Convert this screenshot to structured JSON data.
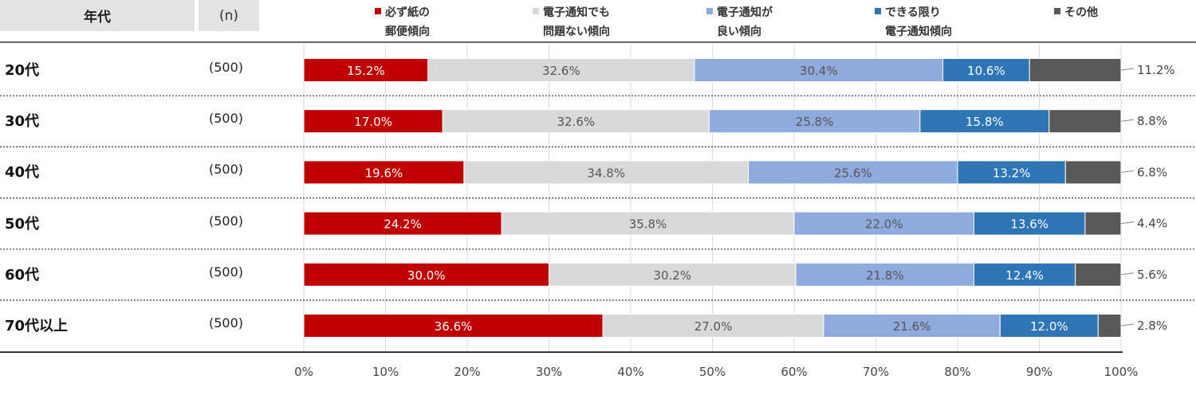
{
  "header": {
    "age_label": "年代",
    "n_label": "(n)"
  },
  "colors": {
    "series": [
      "#c00000",
      "#d9d9d9",
      "#8faadc",
      "#2e75b6",
      "#595959"
    ],
    "label_on_dark": "#ffffff",
    "label_on_light": "#555555"
  },
  "legend": [
    {
      "line1": "必ず紙の",
      "line2": "郵便傾向"
    },
    {
      "line1": "電子通知でも",
      "line2": "問題ない傾向"
    },
    {
      "line1": "電子通知が",
      "line2": "良い傾向"
    },
    {
      "line1": "できる限り",
      "line2": "電子通知傾向"
    },
    {
      "line1": "その他",
      "line2": ""
    }
  ],
  "chart_data": {
    "type": "bar",
    "orientation": "horizontal-stacked-100",
    "categories": [
      "20代",
      "30代",
      "40代",
      "50代",
      "60代",
      "70代以上"
    ],
    "n": [
      "(500)",
      "(500)",
      "(500)",
      "(500)",
      "(500)",
      "(500)"
    ],
    "series": [
      {
        "name": "必ず紙の郵便傾向",
        "values": [
          15.2,
          17.0,
          19.6,
          24.2,
          30.0,
          36.6
        ]
      },
      {
        "name": "電子通知でも問題ない傾向",
        "values": [
          32.6,
          32.6,
          34.8,
          35.8,
          30.2,
          27.0
        ]
      },
      {
        "name": "電子通知が良い傾向",
        "values": [
          30.4,
          25.8,
          25.6,
          22.0,
          21.8,
          21.6
        ]
      },
      {
        "name": "できる限り電子通知傾向",
        "values": [
          10.6,
          15.8,
          13.2,
          13.6,
          12.4,
          12.0
        ]
      },
      {
        "name": "その他",
        "values": [
          11.2,
          8.8,
          6.8,
          4.4,
          5.6,
          2.8
        ]
      }
    ],
    "xlim": [
      0,
      100
    ],
    "x_ticks": [
      "0%",
      "10%",
      "20%",
      "30%",
      "40%",
      "50%",
      "60%",
      "70%",
      "80%",
      "90%",
      "100%"
    ],
    "grid": true,
    "legend_position": "top"
  }
}
